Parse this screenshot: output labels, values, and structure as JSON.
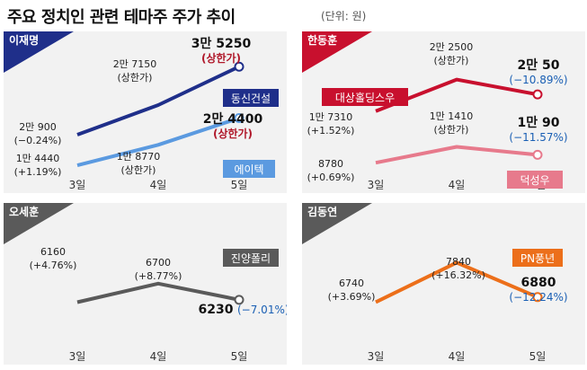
{
  "header": {
    "title": "주요 정치인 관련 테마주 주가 추이",
    "unit": "(단위: 원)"
  },
  "colors": {
    "blue": "#1f2f8a",
    "light_blue": "#5b9ae0",
    "crimson": "#c8102e",
    "pink": "#e77a8c",
    "gray": "#5a5a5a",
    "orange": "#ec6f1a"
  },
  "chart_data": [
    {
      "type": "line",
      "panel_label": "이재명",
      "categories": [
        "3일",
        "4일",
        "5일"
      ],
      "series": [
        {
          "name": "동신건설",
          "values": [
            20900,
            27150,
            35250
          ],
          "labels": [
            [
              "2만 900",
              "(−0.24%)"
            ],
            [
              "2만 7150",
              "(상한가)"
            ],
            [
              "3만 5250",
              "(상한가)"
            ]
          ]
        },
        {
          "name": "에이텍",
          "values": [
            14440,
            18770,
            24400
          ],
          "labels": [
            [
              "1만 4440",
              "(+1.19%)"
            ],
            [
              "1만 8770",
              "(상한가)"
            ],
            [
              "2만 4400",
              "(상한가)"
            ]
          ]
        }
      ]
    },
    {
      "type": "line",
      "panel_label": "한동훈",
      "categories": [
        "3일",
        "4일",
        "5일"
      ],
      "series": [
        {
          "name": "대상홀딩스우",
          "values": [
            17310,
            22500,
            20050
          ],
          "labels": [
            [
              "1만 7310",
              "(+1.52%)"
            ],
            [
              "2만 2500",
              "(상한가)"
            ],
            [
              "2만 50",
              "(−10.89%)"
            ]
          ]
        },
        {
          "name": "덕성우",
          "values": [
            8780,
            11410,
            10090
          ],
          "labels": [
            [
              "8780",
              "(+0.69%)"
            ],
            [
              "1만 1410",
              "(상한가)"
            ],
            [
              "1만 90",
              "(−11.57%)"
            ]
          ]
        }
      ]
    },
    {
      "type": "line",
      "panel_label": "오세훈",
      "categories": [
        "3일",
        "4일",
        "5일"
      ],
      "series": [
        {
          "name": "진양폴리",
          "values": [
            6160,
            6700,
            6230
          ],
          "labels": [
            [
              "6160",
              "(+4.76%)"
            ],
            [
              "6700",
              "(+8.77%)"
            ],
            [
              "6230",
              "(−7.01%)"
            ]
          ]
        }
      ]
    },
    {
      "type": "line",
      "panel_label": "김동연",
      "categories": [
        "3일",
        "4일",
        "5일"
      ],
      "series": [
        {
          "name": "PN풍년",
          "values": [
            6740,
            7840,
            6880
          ],
          "labels": [
            [
              "6740",
              "(+3.69%)"
            ],
            [
              "7840",
              "(+16.32%)"
            ],
            [
              "6880",
              "(−12.24%)"
            ]
          ]
        }
      ]
    }
  ]
}
